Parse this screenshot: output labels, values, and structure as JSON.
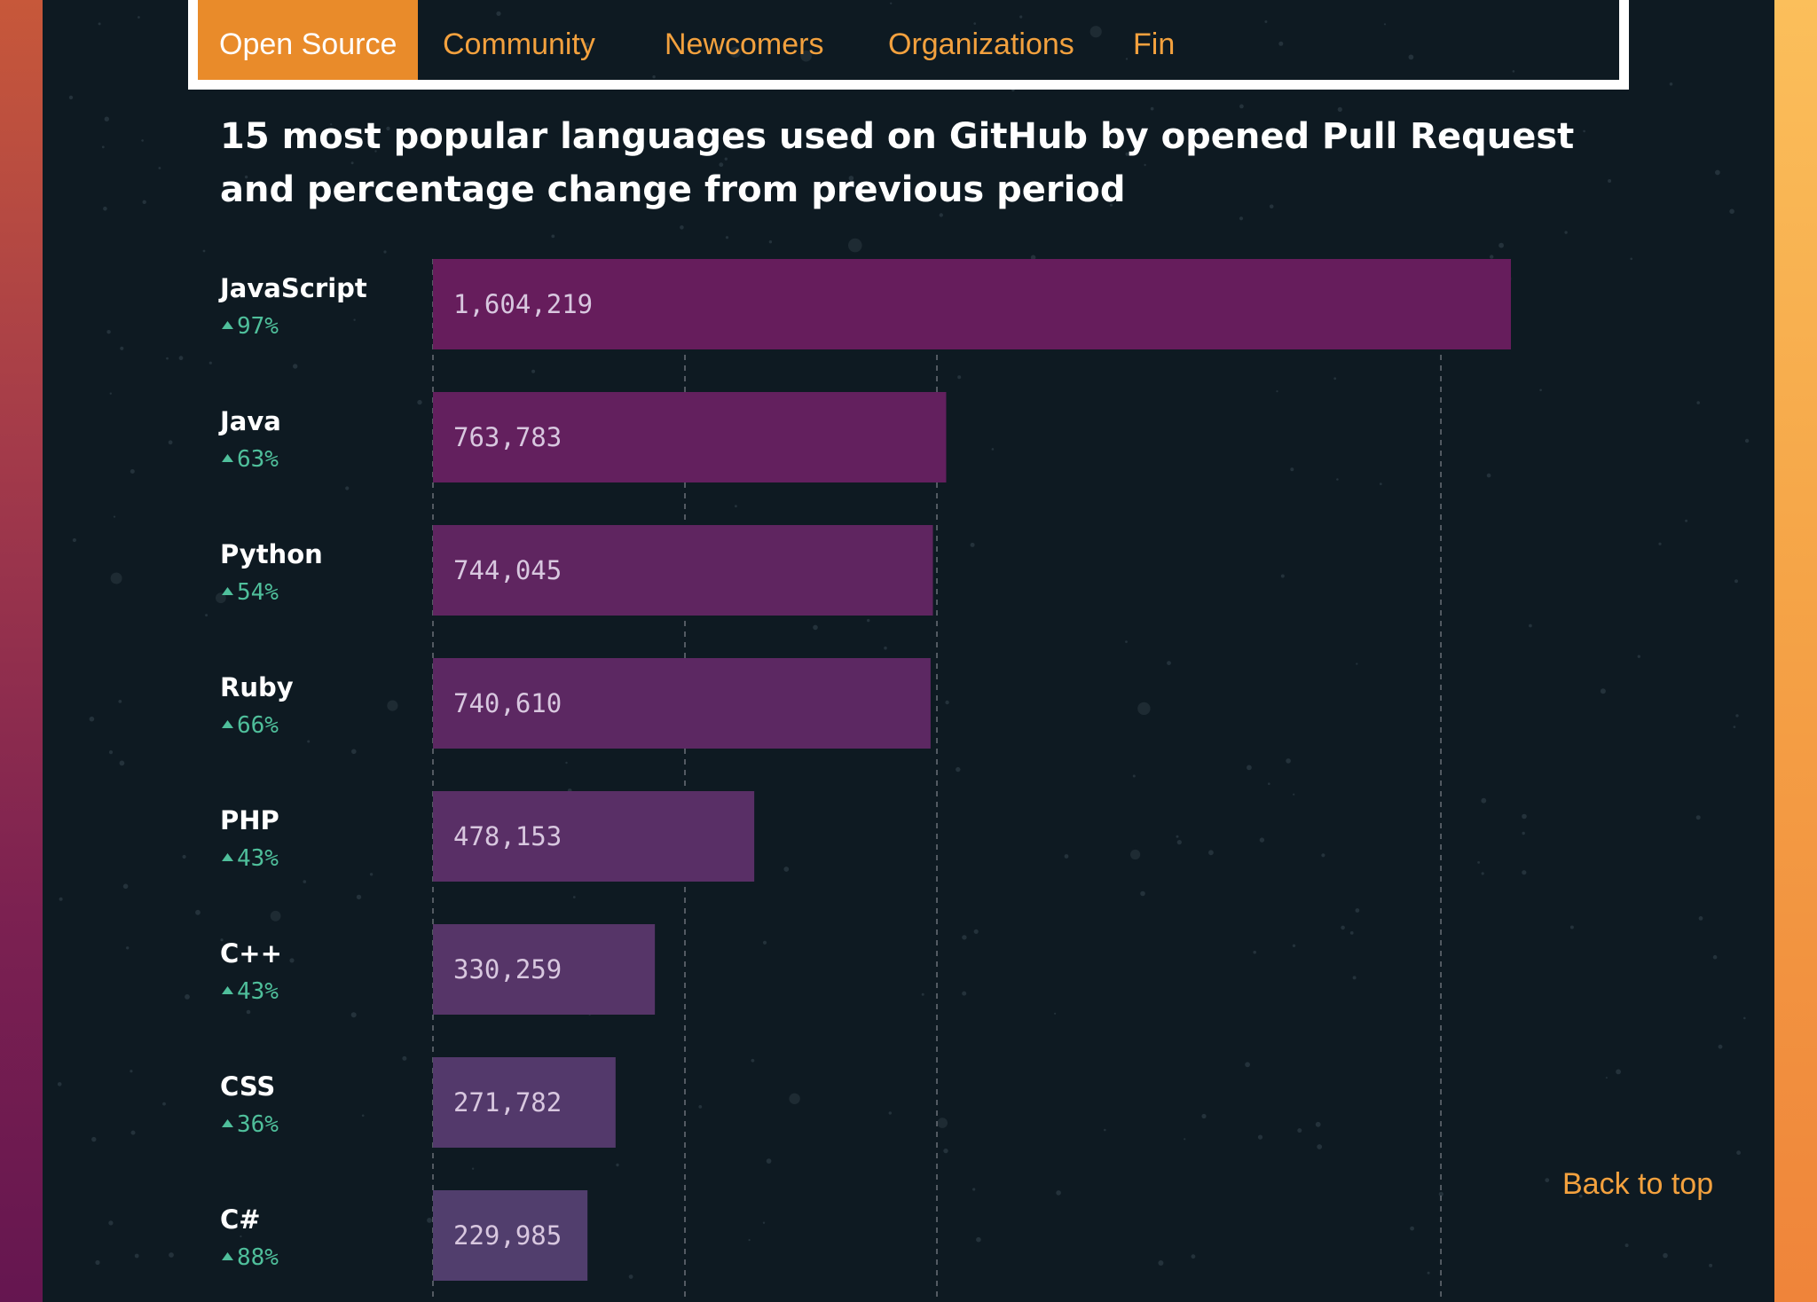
{
  "nav": {
    "tabs": [
      {
        "label": "Open Source",
        "active": true
      },
      {
        "label": "Community",
        "active": false
      },
      {
        "label": "Newcomers",
        "active": false
      },
      {
        "label": "Organizations",
        "active": false
      },
      {
        "label": "Fin",
        "active": false
      }
    ]
  },
  "colors": {
    "accent": "#e98b2a",
    "link": "#f3a13e",
    "positive": "#4fbf9b",
    "background": "#0e1a22"
  },
  "back_to_top": "Back to top",
  "chart_data": {
    "type": "bar",
    "orientation": "horizontal",
    "title": "15 most popular languages used on GitHub by opened Pull Request and percentage change from previous period",
    "grid": true,
    "categories": [
      "JavaScript",
      "Java",
      "Python",
      "Ruby",
      "PHP",
      "C++",
      "CSS",
      "C#"
    ],
    "values": [
      1604219,
      763783,
      744045,
      740610,
      478153,
      330259,
      271782,
      229985
    ],
    "value_labels": [
      "1,604,219",
      "763,783",
      "744,045",
      "740,610",
      "478,153",
      "330,259",
      "271,782",
      "229,985"
    ],
    "change": [
      "97%",
      "63%",
      "54%",
      "66%",
      "43%",
      "43%",
      "36%",
      "88%"
    ],
    "change_direction": [
      "up",
      "up",
      "up",
      "up",
      "up",
      "up",
      "up",
      "up"
    ],
    "xlim": [
      0,
      2000000
    ],
    "gridlines": [
      0,
      375000,
      750000,
      1500000
    ]
  }
}
